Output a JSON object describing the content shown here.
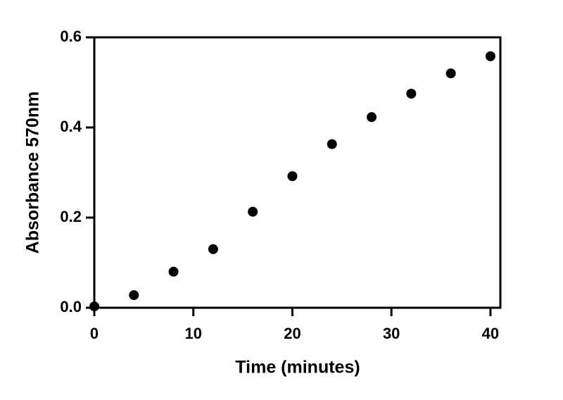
{
  "chart_data": {
    "type": "scatter",
    "x_label": "Time (minutes)",
    "y_label": "Absorbance 570nm",
    "x": [
      0,
      4,
      8,
      12,
      16,
      20,
      24,
      28,
      32,
      36,
      40
    ],
    "values": [
      0.003,
      0.028,
      0.08,
      0.13,
      0.213,
      0.292,
      0.363,
      0.423,
      0.475,
      0.52,
      0.558
    ],
    "color": "#000000",
    "xlim": [
      0,
      41
    ],
    "xticks": [
      0,
      10,
      20,
      30,
      40
    ],
    "ylim": [
      0,
      0.6
    ],
    "yticks": [
      {
        "value": 0,
        "label": "0.0"
      },
      0.2,
      0.4,
      0.6
    ],
    "grid": false
  }
}
